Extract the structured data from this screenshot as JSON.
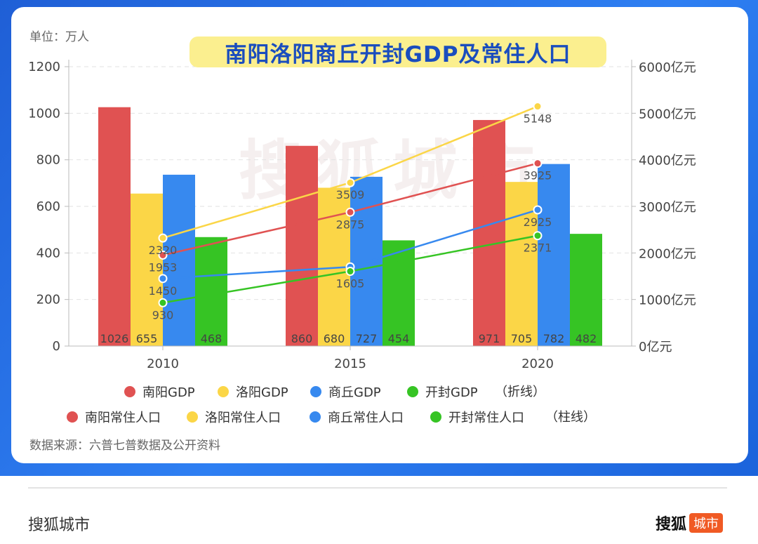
{
  "page": {
    "unit": "单位：万人",
    "title": "南阳洛阳商丘开封GDP及常住人口",
    "source": "数据来源：六普七普数据及公开资料",
    "watermark": "搜狐城市",
    "footer_brand": "搜狐城市",
    "footer_logo_text": "搜狐",
    "footer_logo_badge": "城市"
  },
  "colors": {
    "nanyang": "#e05252",
    "luoyang": "#fbd647",
    "shangqiu": "#3789ef",
    "kaifeng": "#36c424"
  },
  "chart_data": {
    "type": "bar",
    "title": "南阳洛阳商丘开封GDP及常住人口",
    "categories": [
      "2010",
      "2015",
      "2020"
    ],
    "y_left": {
      "label": "单位：万人",
      "ylim": [
        0,
        1200
      ],
      "ticks": [
        0,
        200,
        400,
        600,
        800,
        1000,
        1200
      ],
      "tick_labels": [
        "0",
        "200",
        "400",
        "600",
        "800",
        "1000",
        "1200"
      ]
    },
    "y_right": {
      "ylim": [
        0,
        6000
      ],
      "ticks": [
        0,
        1000,
        2000,
        3000,
        4000,
        5000,
        6000
      ],
      "tick_labels": [
        "0亿元",
        "1000亿元",
        "2000亿元",
        "3000亿元",
        "4000亿元",
        "5000亿元",
        "6000亿元"
      ]
    },
    "bar_series": [
      {
        "name": "南阳常住人口",
        "key": "nanyang",
        "values": [
          1026,
          860,
          971
        ],
        "labels": [
          "1026",
          "860",
          "971"
        ]
      },
      {
        "name": "洛阳常住人口",
        "key": "luoyang",
        "values": [
          655,
          680,
          705
        ],
        "labels": [
          "655",
          "680",
          "705"
        ]
      },
      {
        "name": "商丘常住人口",
        "key": "shangqiu",
        "values": [
          736,
          727,
          782
        ],
        "labels": [
          "",
          "727",
          "782"
        ]
      },
      {
        "name": "开封常住人口",
        "key": "kaifeng",
        "values": [
          468,
          454,
          482
        ],
        "labels": [
          "468",
          "454",
          "482"
        ]
      }
    ],
    "line_series": [
      {
        "name": "南阳GDP",
        "key": "nanyang",
        "values": [
          1953,
          2875,
          3925
        ],
        "labels": [
          "1953",
          "2875",
          "3925"
        ]
      },
      {
        "name": "洛阳GDP",
        "key": "luoyang",
        "values": [
          2320,
          3509,
          5148
        ],
        "labels": [
          "2320",
          "3509",
          "5148"
        ]
      },
      {
        "name": "商丘GDP",
        "key": "shangqiu",
        "values": [
          1450,
          1700,
          2925
        ],
        "labels": [
          "1450",
          "",
          "2925"
        ]
      },
      {
        "name": "开封GDP",
        "key": "kaifeng",
        "values": [
          930,
          1605,
          2371
        ],
        "labels": [
          "930",
          "1605",
          "2371"
        ]
      }
    ],
    "legend_lines_note": "（折线）",
    "legend_bars_note": "（柱线）"
  }
}
